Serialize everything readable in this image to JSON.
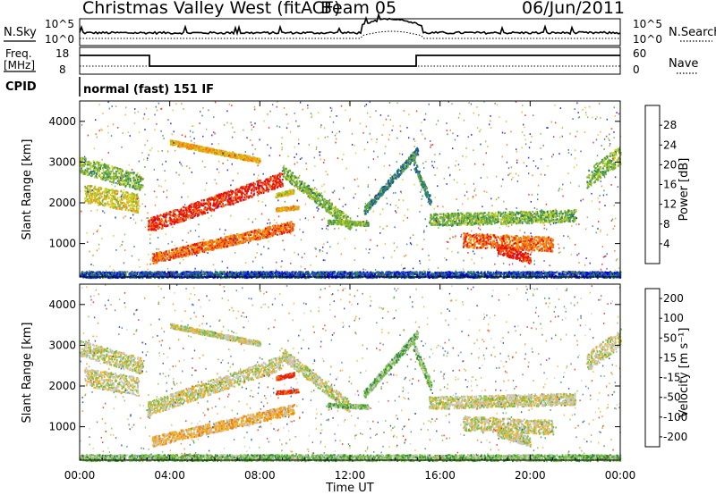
{
  "header": {
    "station": "Christmas Valley West (fitACF)",
    "beam": "Beam 05",
    "date": "06/Jun/2011"
  },
  "status_panels": {
    "nsky_label": "N.Sky",
    "nsearch_label": "N.Search",
    "noise_ticks": [
      "10^5",
      "10^0"
    ],
    "freq_label_line1": "Freq.",
    "freq_label_line2": "[MHz]",
    "freq_ticks": [
      "18",
      "8"
    ],
    "nave_label": "Nave",
    "nave_ticks": [
      "60",
      "0"
    ],
    "cpid_label": "CPID",
    "cpid_value": "normal (fast) 151 IF"
  },
  "chart_data": [
    {
      "type": "heatmap",
      "name": "power",
      "ylabel": "Slant Range [km]",
      "xlabel": "",
      "xlim_hours": [
        0,
        24
      ],
      "ylim_km": [
        180,
        4500
      ],
      "yticks": [
        "1000",
        "2000",
        "3000",
        "4000"
      ],
      "colorbar_label": "Power [dB]",
      "colorbar_ticks": [
        "4",
        "8",
        "12",
        "16",
        "20",
        "24",
        "28"
      ],
      "colorscale": [
        "#0000e0",
        "#1e50b0",
        "#2e8a5a",
        "#78b040",
        "#c8d020",
        "#f5a010",
        "#f07010",
        "#e81010"
      ]
    },
    {
      "type": "heatmap",
      "name": "velocity",
      "ylabel": "Slant Range [km]",
      "xlabel": "Time UT",
      "xticks": [
        "00:00",
        "04:00",
        "08:00",
        "12:00",
        "16:00",
        "20:00",
        "00:00"
      ],
      "xlim_hours": [
        0,
        24
      ],
      "ylim_km": [
        180,
        4500
      ],
      "yticks": [
        "1000",
        "2000",
        "3000",
        "4000"
      ],
      "colorbar_label": "Velocity [m s⁻¹]",
      "colorbar_ticks": [
        "200",
        "100",
        "50",
        "15",
        "-15",
        "-50",
        "-100",
        "-200"
      ],
      "colorscale": [
        "#1030b0",
        "#3a70b8",
        "#2e8a3a",
        "#7ac040",
        "#c8c8c0",
        "#f5b020",
        "#f08010",
        "#e82010"
      ]
    }
  ]
}
